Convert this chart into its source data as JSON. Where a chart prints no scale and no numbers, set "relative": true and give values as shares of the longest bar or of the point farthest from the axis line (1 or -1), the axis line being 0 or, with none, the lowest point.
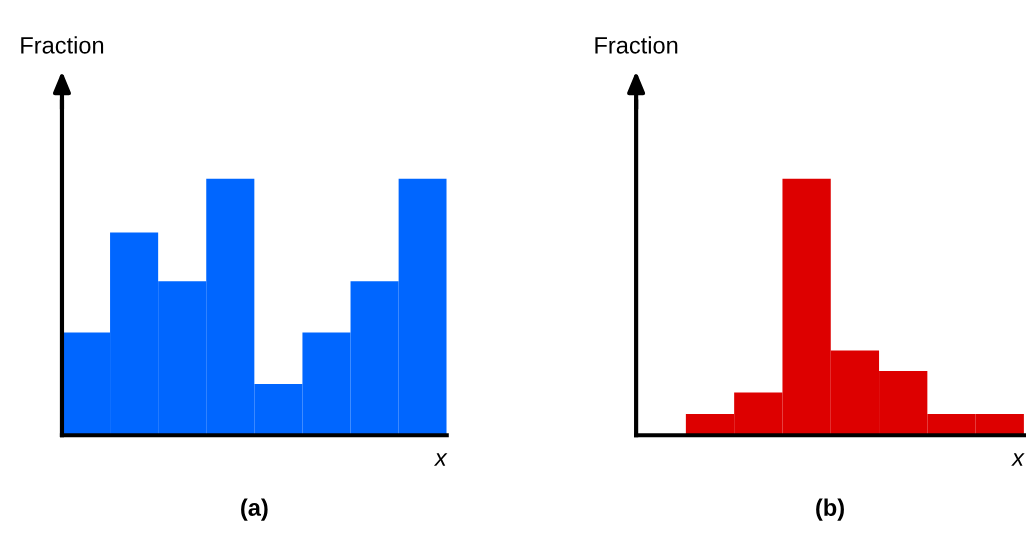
{
  "chart_data": [
    {
      "type": "bar",
      "relative": true,
      "xlabel": "x",
      "ylabel": "Fraction",
      "annotations": [
        "(a)"
      ],
      "categories": [
        null,
        null,
        null,
        null,
        null,
        null,
        null,
        null
      ],
      "color": "#0066ff",
      "values": [
        0.4,
        0.79,
        0.6,
        1,
        0.2,
        0.4,
        0.6,
        1
      ]
    },
    {
      "type": "bar",
      "relative": true,
      "xlabel": "x",
      "ylabel": "Fraction",
      "annotations": [
        "(b)"
      ],
      "categories": [
        null,
        null,
        null,
        null,
        null,
        null,
        null
      ],
      "color": "#dd0000",
      "values": [
        0.083,
        0.167,
        1,
        0.33,
        0.25,
        0.083,
        0.083
      ]
    }
  ]
}
